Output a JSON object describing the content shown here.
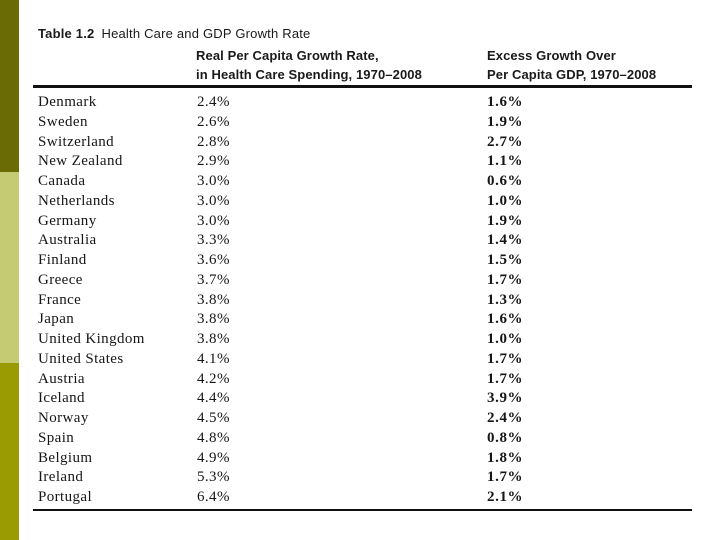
{
  "sidebar": {
    "block_colors": [
      "#6b6b06",
      "#c5cb73",
      "#9a9a02"
    ]
  },
  "table": {
    "title_bold": "Table 1.2",
    "title_rest": "Health Care and GDP Growth Rate",
    "header": {
      "col2_line1": "Real Per Capita Growth Rate,",
      "col2_line2": "in Health Care Spending, 1970–2008",
      "col3_line1": "Excess Growth Over",
      "col3_line2": "Per Capita GDP, 1970–2008"
    },
    "rows": [
      {
        "country": "Denmark",
        "hc": "2.4%",
        "excess": "1.6%"
      },
      {
        "country": "Sweden",
        "hc": "2.6%",
        "excess": "1.9%"
      },
      {
        "country": "Switzerland",
        "hc": "2.8%",
        "excess": "2.7%"
      },
      {
        "country": "New Zealand",
        "hc": "2.9%",
        "excess": "1.1%"
      },
      {
        "country": "Canada",
        "hc": "3.0%",
        "excess": "0.6%"
      },
      {
        "country": "Netherlands",
        "hc": "3.0%",
        "excess": "1.0%"
      },
      {
        "country": "Germany",
        "hc": "3.0%",
        "excess": "1.9%"
      },
      {
        "country": "Australia",
        "hc": "3.3%",
        "excess": "1.4%"
      },
      {
        "country": "Finland",
        "hc": "3.6%",
        "excess": "1.5%"
      },
      {
        "country": "Greece",
        "hc": "3.7%",
        "excess": "1.7%"
      },
      {
        "country": "France",
        "hc": "3.8%",
        "excess": "1.3%"
      },
      {
        "country": "Japan",
        "hc": "3.8%",
        "excess": "1.6%"
      },
      {
        "country": "United Kingdom",
        "hc": "3.8%",
        "excess": "1.0%"
      },
      {
        "country": "United States",
        "hc": "4.1%",
        "excess": "1.7%"
      },
      {
        "country": "Austria",
        "hc": "4.2%",
        "excess": "1.7%"
      },
      {
        "country": "Iceland",
        "hc": "4.4%",
        "excess": "3.9%"
      },
      {
        "country": "Norway",
        "hc": "4.5%",
        "excess": "2.4%"
      },
      {
        "country": "Spain",
        "hc": "4.8%",
        "excess": "0.8%"
      },
      {
        "country": "Belgium",
        "hc": "4.9%",
        "excess": "1.8%"
      },
      {
        "country": "Ireland",
        "hc": "5.3%",
        "excess": "1.7%"
      },
      {
        "country": "Portugal",
        "hc": "6.4%",
        "excess": "2.1%"
      }
    ]
  }
}
